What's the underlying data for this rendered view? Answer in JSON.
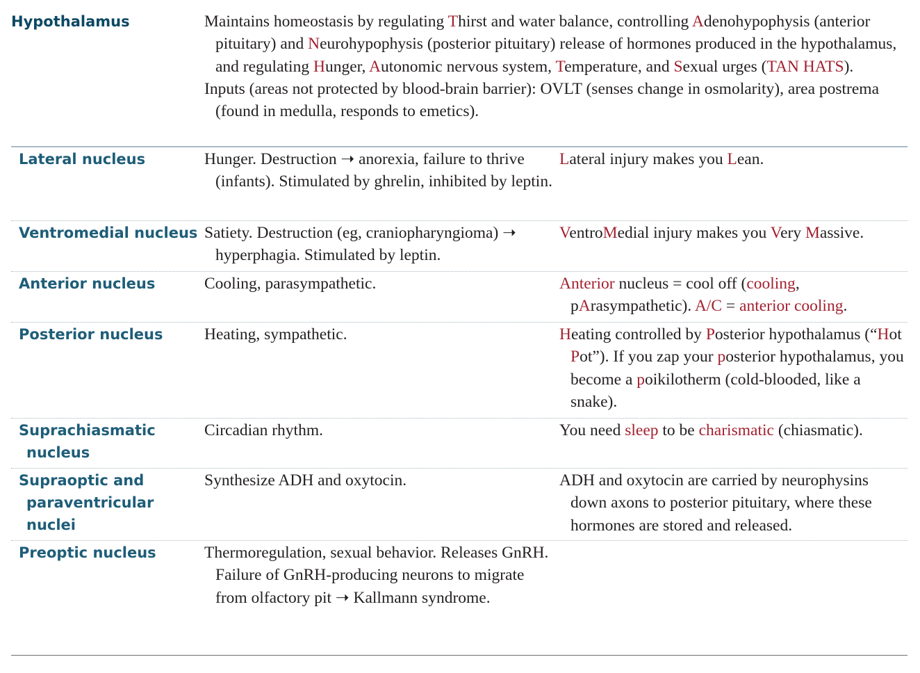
{
  "hypothalamus": {
    "label": "Hypothalamus",
    "p1": [
      {
        "t": "Maintains homeostasis by regulating "
      },
      {
        "t": "T",
        "hl": true
      },
      {
        "t": "hirst and water balance, controlling "
      },
      {
        "t": "A",
        "hl": true
      },
      {
        "t": "denohypophysis (anterior pituitary) and "
      },
      {
        "t": "N",
        "hl": true
      },
      {
        "t": "eurohypophysis (posterior pituitary) release of hormones produced in the hypothalamus, and regulating "
      },
      {
        "t": "H",
        "hl": true
      },
      {
        "t": "unger, "
      },
      {
        "t": "A",
        "hl": true
      },
      {
        "t": "utonomic nervous system, "
      },
      {
        "t": "T",
        "hl": true
      },
      {
        "t": "emperature, and "
      },
      {
        "t": "S",
        "hl": true
      },
      {
        "t": "exual urges ("
      },
      {
        "t": "TAN HATS",
        "hl": true
      },
      {
        "t": ")."
      }
    ],
    "p2": [
      {
        "t": "Inputs (areas not protected by blood-brain barrier): OVLT (senses change in osmolarity), area postrema (found in medulla, responds to emetics)."
      }
    ]
  },
  "rows": [
    {
      "name": "lateral-nucleus",
      "label": [
        "Lateral nucleus"
      ],
      "desc": [
        {
          "t": "Hunger. Destruction ➝ anorexia, failure to thrive (infants). Stimulated by ghrelin, inhibited by leptin."
        }
      ],
      "mnemonic": [
        {
          "t": "L",
          "hl": true
        },
        {
          "t": "ateral injury makes you "
        },
        {
          "t": "L",
          "hl": true
        },
        {
          "t": "ean."
        }
      ]
    },
    {
      "name": "ventromedial-nucleus",
      "label": [
        "Ventromedial nucleus"
      ],
      "desc": [
        {
          "t": "Satiety. Destruction (eg, craniopharyngioma) ➝ hyperphagia. Stimulated by leptin."
        }
      ],
      "mnemonic": [
        {
          "t": "V",
          "hl": true
        },
        {
          "t": "entro"
        },
        {
          "t": "M",
          "hl": true
        },
        {
          "t": "edial injury makes you "
        },
        {
          "t": "V",
          "hl": true
        },
        {
          "t": "ery "
        },
        {
          "t": "M",
          "hl": true
        },
        {
          "t": "assive."
        }
      ]
    },
    {
      "name": "anterior-nucleus",
      "label": [
        "Anterior nucleus"
      ],
      "desc": [
        {
          "t": "Cooling, parasympathetic."
        }
      ],
      "mnemonic": [
        {
          "t": "Anterior",
          "hl": true
        },
        {
          "t": " nucleus = cool off ("
        },
        {
          "t": "cooling",
          "hl": true
        },
        {
          "t": ", p"
        },
        {
          "t": "A",
          "hl": true
        },
        {
          "t": "rasympathetic). "
        },
        {
          "t": "A/C",
          "hl": true
        },
        {
          "t": " = "
        },
        {
          "t": "anterior cooling",
          "hl": true
        },
        {
          "t": "."
        }
      ]
    },
    {
      "name": "posterior-nucleus",
      "label": [
        "Posterior nucleus"
      ],
      "desc": [
        {
          "t": "Heating, sympathetic."
        }
      ],
      "mnemonic": [
        {
          "t": "H",
          "hl": true
        },
        {
          "t": "eating controlled by "
        },
        {
          "t": "P",
          "hl": true
        },
        {
          "t": "osterior hypothalamus (“"
        },
        {
          "t": "H",
          "hl": true
        },
        {
          "t": "ot "
        },
        {
          "t": "P",
          "hl": true
        },
        {
          "t": "ot”). If you zap your "
        },
        {
          "t": "p",
          "hl": true
        },
        {
          "t": "osterior hypothalamus, you become a "
        },
        {
          "t": "p",
          "hl": true
        },
        {
          "t": "oikilotherm (cold-blooded, like a snake)."
        }
      ]
    },
    {
      "name": "suprachiasmatic-nucleus",
      "label": [
        "Suprachiasmatic",
        "nucleus"
      ],
      "desc": [
        {
          "t": "Circadian rhythm."
        }
      ],
      "mnemonic": [
        {
          "t": "You need "
        },
        {
          "t": "sleep",
          "hl": true
        },
        {
          "t": " to be "
        },
        {
          "t": "charismatic",
          "hl": true
        },
        {
          "t": " (chiasmatic)."
        }
      ]
    },
    {
      "name": "supraoptic-paraventricular-nuclei",
      "label": [
        "Supraoptic and",
        "paraventricular",
        "nuclei"
      ],
      "desc": [
        {
          "t": "Synthesize ADH and oxytocin."
        }
      ],
      "mnemonic": [
        {
          "t": "ADH and oxytocin are carried by neurophysins down axons to posterior pituitary, where these hormones are stored and released."
        }
      ]
    },
    {
      "name": "preoptic-nucleus",
      "label": [
        "Preoptic nucleus"
      ],
      "desc": [
        {
          "t": "Thermoregulation, sexual behavior. Releases GnRH. Failure of GnRH-producing neurons to migrate from olfactory pit ➝ Kallmann syndrome."
        }
      ],
      "mnemonic": [],
      "last": true
    }
  ],
  "colors": {
    "label_blue": "#1e5d78",
    "heading_blue": "#0c4863",
    "highlight_red": "#a3212f"
  }
}
